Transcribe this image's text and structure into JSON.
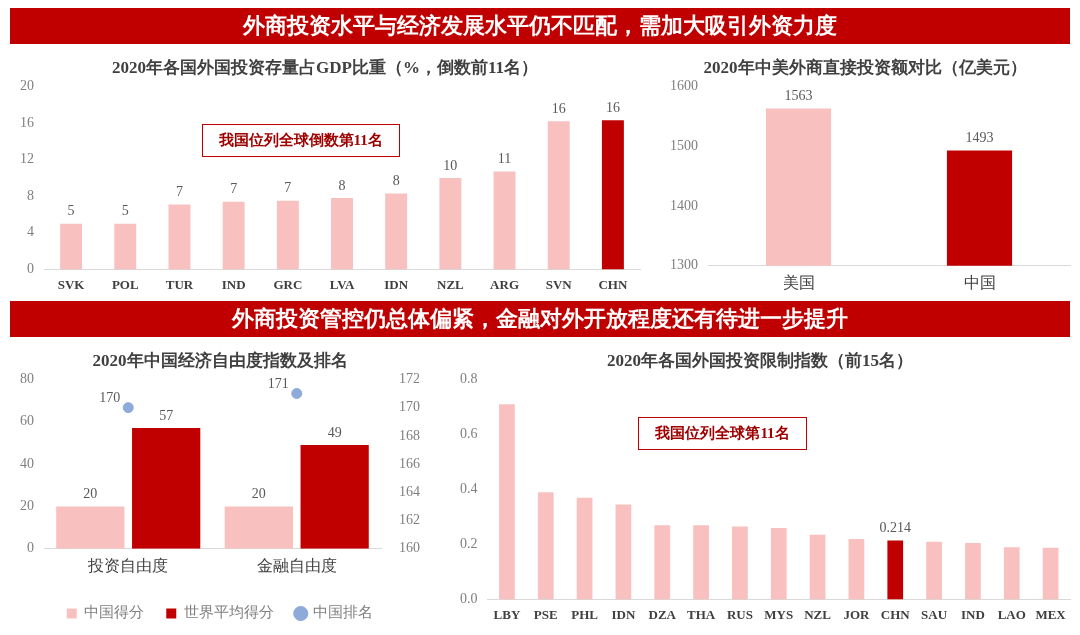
{
  "chart_data": [
    {
      "type": "bar",
      "subtitle": "外商投资水平与经济发展水平仍不匹配，需加大吸引外资力度",
      "title": "2020年各国外国投资存量占GDP比重（%，倒数前11名）",
      "categories": [
        "SVK",
        "POL",
        "TUR",
        "IND",
        "GRC",
        "LVA",
        "IDN",
        "NZL",
        "ARG",
        "SVN",
        "CHN"
      ],
      "values": [
        5.0,
        5.0,
        7.1,
        7.4,
        7.5,
        7.8,
        8.3,
        10.0,
        10.7,
        16.2,
        16.3
      ],
      "colors": [
        "#f9c0c0",
        "#f9c0c0",
        "#f9c0c0",
        "#f9c0c0",
        "#f9c0c0",
        "#f9c0c0",
        "#f9c0c0",
        "#f9c0c0",
        "#f9c0c0",
        "#f9c0c0",
        "#c00000"
      ],
      "value_labels": [
        "5",
        "5",
        "7",
        "7",
        "7",
        "8",
        "8",
        "10",
        "11",
        "16",
        "16"
      ],
      "ylim": [
        0,
        20
      ],
      "yticks": [
        0,
        4,
        8,
        12,
        16,
        20
      ],
      "annotations": [
        "我国位列全球倒数第11名"
      ]
    },
    {
      "type": "bar",
      "title": "2020年中美外商直接投资额对比（亿美元）",
      "categories": [
        "美国",
        "中国"
      ],
      "values": [
        1563,
        1493
      ],
      "colors": [
        "#f9c0c0",
        "#c00000"
      ],
      "data_labels": true,
      "ylim": [
        1300,
        1600
      ],
      "yticks": [
        1300,
        1400,
        1500,
        1600
      ]
    },
    {
      "type": "bar",
      "subtitle": "外商投资管控仍总体偏紧，金融对外开放程度还有待进一步提升",
      "title": "2020年中国经济自由度指数及排名",
      "categories": [
        "投资自由度",
        "金融自由度"
      ],
      "series": [
        {
          "name": "中国得分",
          "color": "#f9c0c0",
          "values": [
            20,
            20
          ]
        },
        {
          "name": "世界平均得分",
          "color": "#c00000",
          "values": [
            57,
            49
          ]
        },
        {
          "name": "中国排名",
          "type": "scatter",
          "axis": "y2",
          "color": "#8eaadb",
          "x": [
            "投资自由度",
            "金融自由度"
          ],
          "values": [
            170,
            171
          ]
        }
      ],
      "data_labels": true,
      "legend": "bottom",
      "ylim": [
        0,
        80
      ],
      "yticks": [
        0,
        20,
        40,
        60,
        80
      ],
      "y2lim": [
        160,
        172
      ],
      "y2ticks": [
        160,
        162,
        164,
        166,
        168,
        170,
        172
      ]
    },
    {
      "type": "bar",
      "title": "2020年各国外国投资限制指数（前15名）",
      "categories": [
        "LBY",
        "PSE",
        "PHL",
        "IDN",
        "DZA",
        "THA",
        "RUS",
        "MYS",
        "NZL",
        "JOR",
        "CHN",
        "SAU",
        "IND",
        "LAO",
        "MEX"
      ],
      "values": [
        0.71,
        0.39,
        0.37,
        0.345,
        0.27,
        0.27,
        0.265,
        0.26,
        0.235,
        0.22,
        0.214,
        0.21,
        0.205,
        0.19,
        0.188
      ],
      "colors": [
        "#f9c0c0",
        "#f9c0c0",
        "#f9c0c0",
        "#f9c0c0",
        "#f9c0c0",
        "#f9c0c0",
        "#f9c0c0",
        "#f9c0c0",
        "#f9c0c0",
        "#f9c0c0",
        "#c00000",
        "#f9c0c0",
        "#f9c0c0",
        "#f9c0c0",
        "#f9c0c0"
      ],
      "value_labels": [
        null,
        null,
        null,
        null,
        null,
        null,
        null,
        null,
        null,
        null,
        "0.214",
        null,
        null,
        null,
        null
      ],
      "ylim": [
        0,
        0.8
      ],
      "yticks": [
        {
          "value": 0,
          "label": "0.0"
        },
        {
          "value": 0.2,
          "label": "0.2"
        },
        {
          "value": 0.4,
          "label": "0.4"
        },
        {
          "value": 0.6,
          "label": "0.6"
        },
        {
          "value": 0.8,
          "label": "0.8"
        }
      ],
      "annotations": [
        "我国位列全球第11名"
      ]
    }
  ]
}
